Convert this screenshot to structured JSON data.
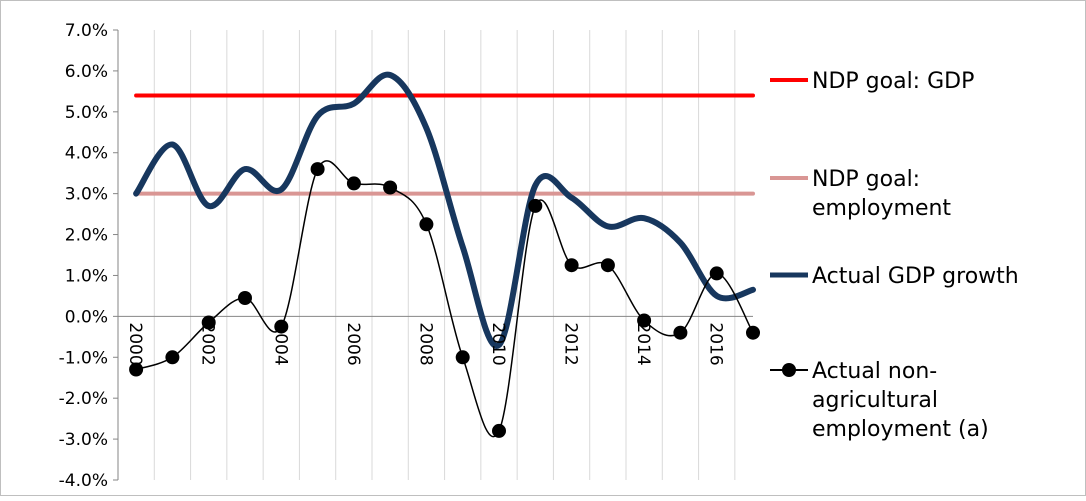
{
  "chart_data": {
    "type": "line",
    "x": [
      "2000",
      "2001",
      "2002",
      "2003",
      "2004",
      "2005",
      "2006",
      "2007",
      "2008",
      "2009",
      "2010",
      "2011",
      "2012",
      "2013",
      "2014",
      "2015",
      "2016",
      "2017"
    ],
    "x_tick_labels": [
      "2000",
      "2002",
      "2004",
      "2006",
      "2008",
      "2010",
      "2012",
      "2014",
      "2016"
    ],
    "y_tick_labels": [
      "7.0%",
      "6.0%",
      "5.0%",
      "4.0%",
      "3.0%",
      "2.0%",
      "1.0%",
      "0.0%",
      "-1.0%",
      "-2.0%",
      "-3.0%",
      "-4.0%"
    ],
    "ylim": [
      -4.0,
      7.0
    ],
    "grid": "vertical",
    "legend_position": "right",
    "series": [
      {
        "name": "NDP goal: GDP",
        "color": "#ff0000",
        "values": [
          5.4,
          5.4,
          5.4,
          5.4,
          5.4,
          5.4,
          5.4,
          5.4,
          5.4,
          5.4,
          5.4,
          5.4,
          5.4,
          5.4,
          5.4,
          5.4,
          5.4,
          5.4
        ]
      },
      {
        "name": "NDP goal: employment",
        "color": "#d99694",
        "values": [
          3.0,
          3.0,
          3.0,
          3.0,
          3.0,
          3.0,
          3.0,
          3.0,
          3.0,
          3.0,
          3.0,
          3.0,
          3.0,
          3.0,
          3.0,
          3.0,
          3.0,
          3.0
        ]
      },
      {
        "name": "Actual GDP growth",
        "color": "#17375e",
        "values": [
          3.0,
          4.2,
          2.7,
          3.6,
          3.1,
          4.9,
          5.2,
          5.9,
          4.6,
          1.7,
          -0.7,
          3.2,
          2.9,
          2.2,
          2.4,
          1.8,
          0.5,
          0.65
        ]
      },
      {
        "name": "Actual non-agricultural employment (a)",
        "color": "#000000",
        "values": [
          -1.3,
          -1.0,
          -0.15,
          0.45,
          -0.25,
          3.6,
          3.25,
          3.15,
          2.25,
          -1.0,
          -2.8,
          2.7,
          1.25,
          1.25,
          -0.1,
          -0.4,
          1.05,
          -0.4
        ]
      }
    ],
    "legend": [
      {
        "lines": [
          "NDP goal: GDP"
        ]
      },
      {
        "lines": [
          "NDP goal:",
          "employment"
        ]
      },
      {
        "lines": [
          "Actual GDP growth"
        ]
      },
      {
        "lines": [
          "Actual non-",
          "agricultural",
          "employment (a)"
        ]
      }
    ]
  }
}
